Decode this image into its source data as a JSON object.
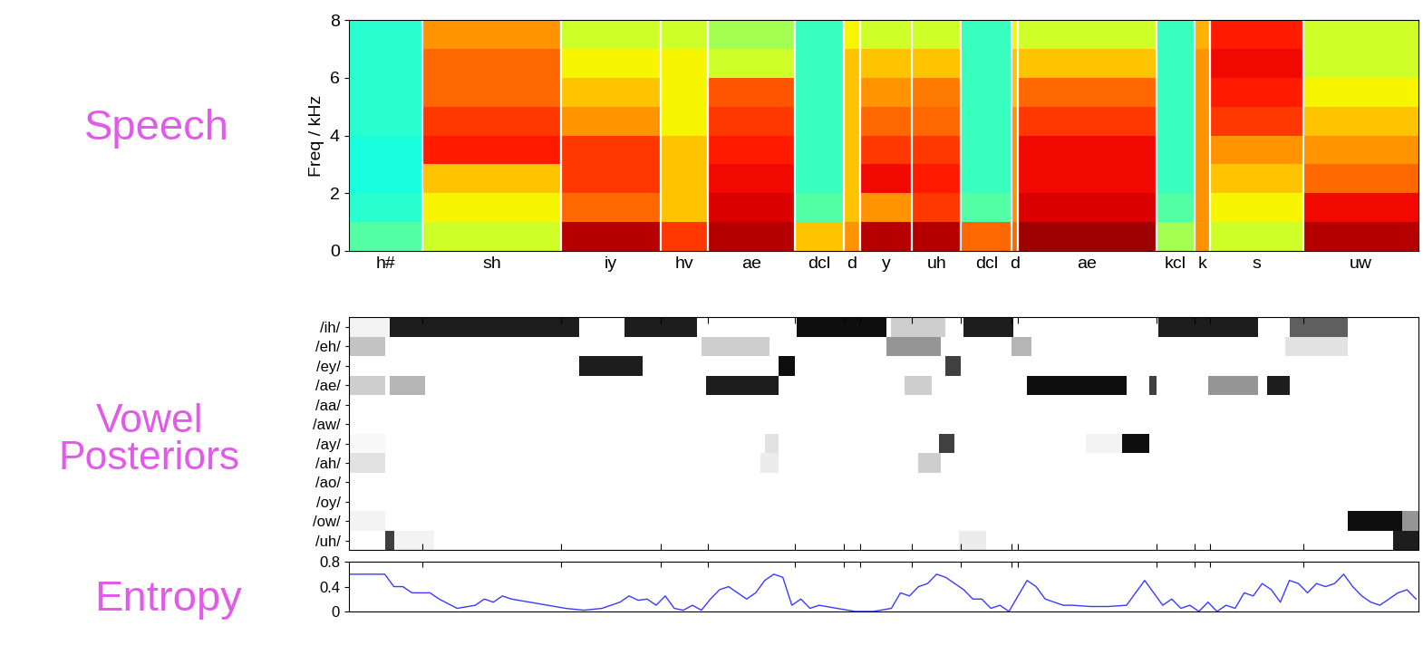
{
  "chart_data": [
    {
      "type": "heatmap",
      "title": "Speech",
      "ylabel": "Freq / kHz",
      "xlim": [
        0,
        118.3
      ],
      "ylim": [
        0,
        8
      ],
      "yticks": [
        0,
        2,
        4,
        6,
        8
      ],
      "tick_labels": "y",
      "color": "jet",
      "clim": [
        0,
        1
      ],
      "freq_edges": [
        0,
        1,
        2,
        3,
        4,
        5,
        6,
        7,
        8
      ],
      "segments": [
        {
          "label": "h#",
          "start": 0,
          "end": 8.2,
          "levels": [
            0.45,
            0.4,
            0.38,
            0.38,
            0.4,
            0.4,
            0.4,
            0.4
          ]
        },
        {
          "label": "sh",
          "start": 8.2,
          "end": 23.5,
          "levels": [
            0.6,
            0.65,
            0.7,
            0.88,
            0.85,
            0.8,
            0.8,
            0.75
          ]
        },
        {
          "label": "iy",
          "start": 23.5,
          "end": 34.5,
          "levels": [
            0.95,
            0.8,
            0.85,
            0.85,
            0.75,
            0.7,
            0.65,
            0.6
          ]
        },
        {
          "label": "hv",
          "start": 34.5,
          "end": 39.7,
          "levels": [
            0.85,
            0.7,
            0.7,
            0.7,
            0.65,
            0.65,
            0.65,
            0.6
          ]
        },
        {
          "label": "ae",
          "start": 39.7,
          "end": 49.3,
          "levels": [
            0.95,
            0.92,
            0.9,
            0.88,
            0.85,
            0.82,
            0.6,
            0.55
          ]
        },
        {
          "label": "dcl",
          "start": 49.3,
          "end": 54.7,
          "levels": [
            0.7,
            0.45,
            0.42,
            0.42,
            0.42,
            0.42,
            0.42,
            0.42
          ]
        },
        {
          "label": "d",
          "start": 54.7,
          "end": 56.5,
          "levels": [
            0.75,
            0.7,
            0.7,
            0.7,
            0.7,
            0.7,
            0.7,
            0.65
          ]
        },
        {
          "label": "y",
          "start": 56.5,
          "end": 62.3,
          "levels": [
            0.95,
            0.75,
            0.9,
            0.85,
            0.8,
            0.75,
            0.7,
            0.6
          ]
        },
        {
          "label": "uh",
          "start": 62.3,
          "end": 67.7,
          "levels": [
            0.95,
            0.85,
            0.88,
            0.85,
            0.8,
            0.78,
            0.7,
            0.6
          ]
        },
        {
          "label": "dcl",
          "start": 67.7,
          "end": 73.3,
          "levels": [
            0.8,
            0.45,
            0.42,
            0.42,
            0.42,
            0.42,
            0.42,
            0.42
          ]
        },
        {
          "label": "d",
          "start": 73.3,
          "end": 74.0,
          "levels": [
            0.8,
            0.75,
            0.75,
            0.75,
            0.75,
            0.7,
            0.7,
            0.65
          ]
        },
        {
          "label": "ae",
          "start": 74.0,
          "end": 89.3,
          "levels": [
            0.97,
            0.92,
            0.9,
            0.9,
            0.85,
            0.8,
            0.7,
            0.6
          ]
        },
        {
          "label": "kcl",
          "start": 89.3,
          "end": 93.5,
          "levels": [
            0.55,
            0.45,
            0.42,
            0.42,
            0.42,
            0.42,
            0.42,
            0.42
          ]
        },
        {
          "label": "k",
          "start": 93.5,
          "end": 95.2,
          "levels": [
            0.75,
            0.75,
            0.75,
            0.75,
            0.75,
            0.75,
            0.75,
            0.72
          ]
        },
        {
          "label": "s",
          "start": 95.2,
          "end": 105.5,
          "levels": [
            0.6,
            0.65,
            0.7,
            0.75,
            0.85,
            0.88,
            0.9,
            0.88
          ]
        },
        {
          "label": "uw",
          "start": 105.5,
          "end": 118.3,
          "levels": [
            0.95,
            0.9,
            0.8,
            0.75,
            0.7,
            0.65,
            0.6,
            0.6
          ]
        }
      ]
    },
    {
      "type": "heatmap",
      "title": "Vowel\nPosteriors",
      "xlim": [
        0,
        118.3
      ],
      "xticks": [
        8.2,
        23.5,
        34.5,
        39.7,
        49.3,
        54.7,
        56.5,
        62.3,
        67.7,
        73.3,
        74.0,
        89.3,
        93.5,
        95.2,
        105.5
      ],
      "tick_labels": "y",
      "color": "Greys",
      "clim": [
        0,
        1
      ],
      "series": [
        {
          "name": "/ih/",
          "values": [
            [
              0,
              4.5,
              0.1
            ],
            [
              4.5,
              25.5,
              0.9
            ],
            [
              30.5,
              38.5,
              0.9
            ],
            [
              49.5,
              59.5,
              0.95
            ],
            [
              60,
              66,
              0.3
            ],
            [
              68,
              73.5,
              0.9
            ],
            [
              89.5,
              100.5,
              0.9
            ],
            [
              104,
              110.5,
              0.7
            ]
          ]
        },
        {
          "name": "/eh/",
          "values": [
            [
              0,
              4,
              0.35
            ],
            [
              39,
              46.5,
              0.3
            ],
            [
              59.5,
              65.5,
              0.5
            ],
            [
              73.3,
              75.5,
              0.4
            ],
            [
              103.5,
              110.5,
              0.2
            ]
          ]
        },
        {
          "name": "/ey/",
          "values": [
            [
              25.5,
              32.5,
              0.9
            ],
            [
              47.5,
              49.3,
              0.95
            ],
            [
              66,
              67.7,
              0.8
            ]
          ]
        },
        {
          "name": "/ae/",
          "values": [
            [
              0,
              4,
              0.3
            ],
            [
              4.5,
              8.5,
              0.4
            ],
            [
              39.5,
              47.5,
              0.9
            ],
            [
              61.5,
              64.5,
              0.3
            ],
            [
              75,
              86,
              0.95
            ],
            [
              88.5,
              89.3,
              0.8
            ],
            [
              95,
              100.5,
              0.5
            ],
            [
              101.5,
              104,
              0.9
            ]
          ]
        },
        {
          "name": "/aa/",
          "values": []
        },
        {
          "name": "/aw/",
          "values": []
        },
        {
          "name": "/ay/",
          "values": [
            [
              0,
              4,
              0.05
            ],
            [
              46,
              47.5,
              0.2
            ],
            [
              65.3,
              67,
              0.8
            ],
            [
              81.5,
              85.5,
              0.1
            ],
            [
              85.5,
              88.5,
              0.95
            ]
          ]
        },
        {
          "name": "/ah/",
          "values": [
            [
              0,
              4,
              0.2
            ],
            [
              45.5,
              47.5,
              0.15
            ],
            [
              63,
              65.5,
              0.3
            ]
          ]
        },
        {
          "name": "/ao/",
          "values": []
        },
        {
          "name": "/oy/",
          "values": []
        },
        {
          "name": "/ow/",
          "values": [
            [
              0,
              4,
              0.1
            ],
            [
              110.5,
              116.5,
              0.95
            ],
            [
              116.5,
              118.3,
              0.5
            ]
          ]
        },
        {
          "name": "/uh/",
          "values": [
            [
              4,
              5,
              0.8
            ],
            [
              5,
              9.5,
              0.1
            ],
            [
              67.5,
              70.5,
              0.15
            ],
            [
              115.5,
              118.3,
              0.9
            ]
          ]
        }
      ]
    },
    {
      "type": "line",
      "title": "Entropy",
      "xlim": [
        0,
        118.3
      ],
      "ylim": [
        0,
        0.8
      ],
      "yticks": [
        0,
        0.4,
        0.8
      ],
      "xticks": [
        8.2,
        23.5,
        34.5,
        39.7,
        49.3,
        54.7,
        56.5,
        62.3,
        67.7,
        73.3,
        74.0,
        89.3,
        93.5,
        95.2,
        105.5
      ],
      "tick_labels": "y",
      "color": "#3a3aff",
      "x": [
        0,
        2,
        4,
        5,
        6,
        7,
        9,
        10,
        12,
        14,
        15,
        16,
        17,
        18,
        20,
        22,
        24,
        26,
        28,
        30,
        31,
        32,
        33,
        34,
        35,
        36,
        37,
        38,
        39,
        40,
        41,
        42,
        43,
        44,
        45,
        46,
        47,
        48,
        49,
        50,
        51,
        52,
        54,
        56,
        58,
        60,
        61,
        62,
        63,
        64,
        65,
        66,
        67,
        68,
        69,
        70,
        71,
        72,
        73,
        74,
        75,
        76,
        77,
        78,
        79,
        80,
        82,
        84,
        86,
        87,
        88,
        89,
        90,
        91,
        92,
        93,
        94,
        95,
        96,
        97,
        98,
        99,
        100,
        101,
        102,
        103,
        104,
        105,
        106,
        107,
        108,
        109,
        110,
        111,
        112,
        113,
        114,
        115,
        116,
        117,
        118
      ],
      "values": [
        0.6,
        0.6,
        0.6,
        0.4,
        0.4,
        0.3,
        0.3,
        0.2,
        0.05,
        0.1,
        0.2,
        0.15,
        0.25,
        0.2,
        0.15,
        0.1,
        0.05,
        0.02,
        0.05,
        0.15,
        0.25,
        0.18,
        0.2,
        0.1,
        0.25,
        0.05,
        0.02,
        0.1,
        0.02,
        0.2,
        0.35,
        0.4,
        0.3,
        0.2,
        0.3,
        0.5,
        0.6,
        0.55,
        0.1,
        0.2,
        0.05,
        0.1,
        0.05,
        0,
        0,
        0.05,
        0.3,
        0.25,
        0.4,
        0.45,
        0.6,
        0.55,
        0.45,
        0.35,
        0.2,
        0.2,
        0.05,
        0.1,
        0,
        0.25,
        0.5,
        0.4,
        0.2,
        0.15,
        0.1,
        0.1,
        0.08,
        0.08,
        0.1,
        0.3,
        0.5,
        0.3,
        0.1,
        0.2,
        0.05,
        0.1,
        0.0,
        0.15,
        0.0,
        0.1,
        0.05,
        0.3,
        0.25,
        0.45,
        0.35,
        0.15,
        0.5,
        0.45,
        0.3,
        0.45,
        0.4,
        0.45,
        0.6,
        0.4,
        0.25,
        0.15,
        0.1,
        0.2,
        0.3,
        0.35,
        0.2
      ]
    }
  ]
}
